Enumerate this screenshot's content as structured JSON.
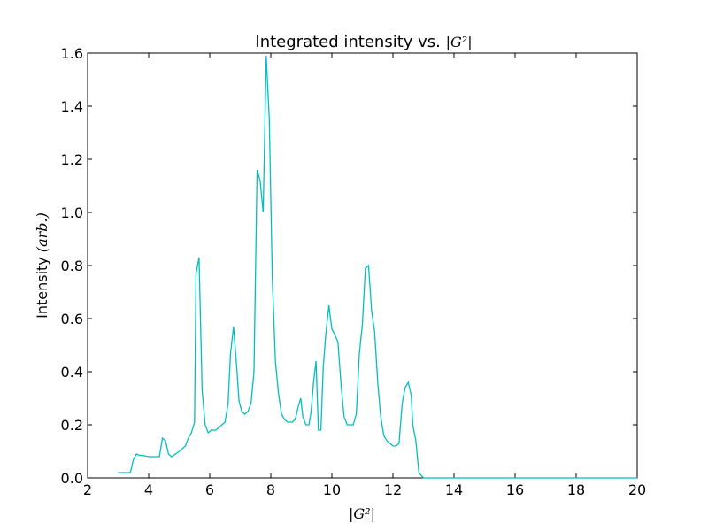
{
  "chart_data": {
    "type": "line",
    "title": "Integrated intensity vs. ",
    "title_math": "|G²|",
    "xlabel": "|G²|",
    "ylabel": "Intensity ",
    "ylabel_math": "(arb.)",
    "xlim": [
      2,
      20
    ],
    "ylim": [
      0,
      1.6
    ],
    "xticks": [
      "2",
      "4",
      "6",
      "8",
      "10",
      "12",
      "14",
      "16",
      "18",
      "20"
    ],
    "yticks": [
      "0.0",
      "0.2",
      "0.4",
      "0.6",
      "0.8",
      "1.0",
      "1.2",
      "1.4",
      "1.6"
    ],
    "grid": false,
    "line_color": "#00bfbf",
    "series": [
      {
        "x": [
          3.0,
          3.4,
          3.5,
          3.6,
          3.7,
          3.8,
          4.0,
          4.2,
          4.35,
          4.45,
          4.55,
          4.65,
          4.75,
          5.0,
          5.2,
          5.3,
          5.4,
          5.5,
          5.55,
          5.65,
          5.75,
          5.85,
          5.95,
          6.05,
          6.2,
          6.4,
          6.5,
          6.6,
          6.68,
          6.78,
          6.88,
          6.96,
          7.05,
          7.15,
          7.25,
          7.35,
          7.45,
          7.55,
          7.65,
          7.75,
          7.85,
          7.95,
          8.05,
          8.15,
          8.25,
          8.35,
          8.45,
          8.55,
          8.7,
          8.8,
          8.9,
          8.98,
          9.05,
          9.15,
          9.25,
          9.32,
          9.4,
          9.48,
          9.56,
          9.64,
          9.72,
          9.8,
          9.9,
          10.0,
          10.1,
          10.2,
          10.3,
          10.4,
          10.5,
          10.6,
          10.7,
          10.8,
          10.9,
          11.0,
          11.1,
          11.2,
          11.3,
          11.4,
          11.5,
          11.6,
          11.7,
          11.8,
          11.9,
          12.0,
          12.1,
          12.2,
          12.3,
          12.4,
          12.5,
          12.6,
          12.65,
          12.75,
          12.85,
          13.0,
          14.0,
          16.0,
          18.0,
          20.0
        ],
        "y": [
          0.02,
          0.02,
          0.07,
          0.09,
          0.085,
          0.085,
          0.08,
          0.08,
          0.08,
          0.15,
          0.14,
          0.09,
          0.08,
          0.1,
          0.12,
          0.15,
          0.17,
          0.21,
          0.77,
          0.83,
          0.33,
          0.2,
          0.17,
          0.18,
          0.18,
          0.2,
          0.21,
          0.28,
          0.47,
          0.57,
          0.42,
          0.29,
          0.25,
          0.24,
          0.25,
          0.28,
          0.4,
          1.16,
          1.12,
          1.0,
          1.59,
          1.35,
          0.75,
          0.44,
          0.32,
          0.24,
          0.22,
          0.21,
          0.21,
          0.22,
          0.27,
          0.3,
          0.23,
          0.2,
          0.2,
          0.25,
          0.36,
          0.44,
          0.18,
          0.18,
          0.42,
          0.54,
          0.65,
          0.56,
          0.54,
          0.51,
          0.35,
          0.23,
          0.2,
          0.2,
          0.2,
          0.24,
          0.47,
          0.58,
          0.79,
          0.8,
          0.63,
          0.55,
          0.36,
          0.23,
          0.16,
          0.14,
          0.13,
          0.12,
          0.12,
          0.13,
          0.28,
          0.34,
          0.36,
          0.31,
          0.2,
          0.14,
          0.02,
          0.0,
          0.0,
          0.0,
          0.0,
          0.0
        ]
      }
    ]
  }
}
